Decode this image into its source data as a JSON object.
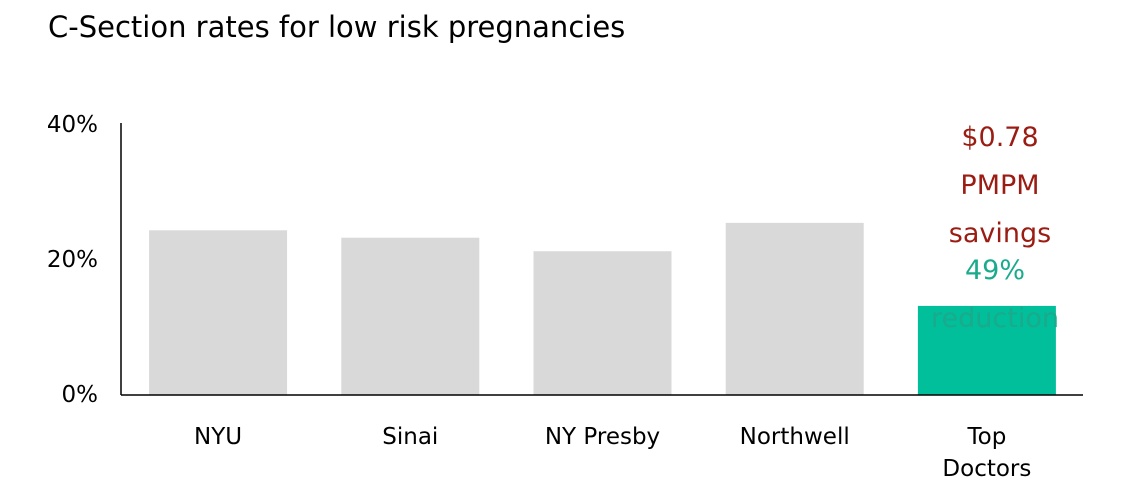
{
  "chart_data": {
    "type": "bar",
    "title": "C-Section rates for low risk pregnancies",
    "categories": [
      "NYU",
      "Sinai",
      "NY Presby",
      "Northwell",
      "Top\nDoctors"
    ],
    "values": [
      24.4,
      23.3,
      21.3,
      25.5,
      13.2
    ],
    "colors": [
      "#d9d9d9",
      "#d9d9d9",
      "#d9d9d9",
      "#d9d9d9",
      "#00bf9a"
    ],
    "ylim": [
      0,
      40
    ],
    "yticks": [
      {
        "value": 0,
        "label": "0%"
      },
      {
        "value": 20,
        "label": "20%"
      },
      {
        "value": 40,
        "label": "40%"
      }
    ],
    "grid": false,
    "annotations": [
      {
        "text": "$0.78\nPMPM savings",
        "color": "#9b1c12"
      },
      {
        "text": "49% reduction",
        "color": "#1aaa8c"
      }
    ]
  }
}
